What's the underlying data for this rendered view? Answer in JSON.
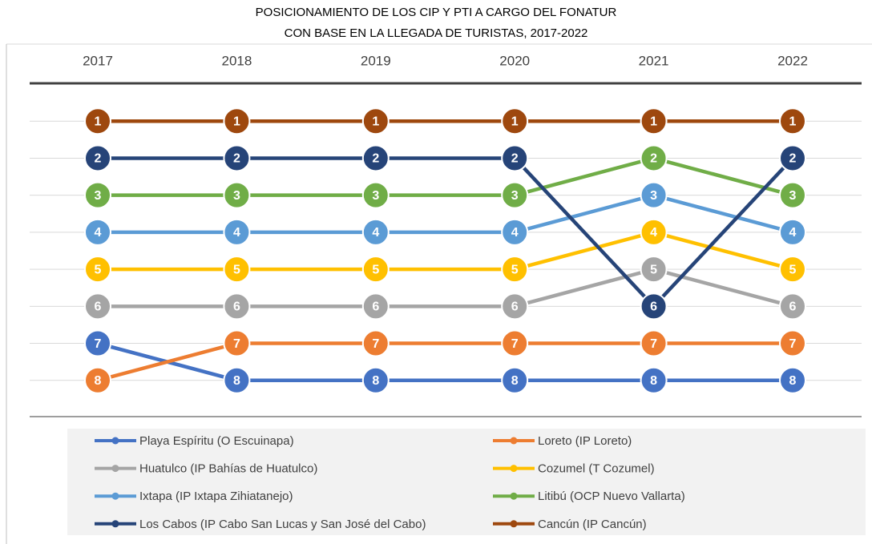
{
  "chart_data": {
    "type": "line",
    "title": "POSICIONAMIENTO DE LOS CIP Y PTI A CARGO DEL FONATUR",
    "subtitle": "CON BASE EN LA LLEGADA DE TURISTAS, 2017-2022",
    "categories": [
      "2017",
      "2018",
      "2019",
      "2020",
      "2021",
      "2022"
    ],
    "ylim": [
      0,
      9
    ],
    "yticks": [
      1,
      2,
      3,
      4,
      5,
      6,
      7,
      8
    ],
    "inverted": true,
    "grid": true,
    "legend": "bottom",
    "series": [
      {
        "name": "Playa Espíritu (O Escuinapa)",
        "color": "#4472c4",
        "values": [
          7,
          8,
          8,
          8,
          8,
          8
        ]
      },
      {
        "name": "Loreto (IP Loreto)",
        "color": "#ed7d31",
        "values": [
          8,
          7,
          7,
          7,
          7,
          7
        ]
      },
      {
        "name": "Huatulco (IP Bahías de Huatulco)",
        "color": "#a5a5a5",
        "values": [
          6,
          6,
          6,
          6,
          5,
          6
        ]
      },
      {
        "name": "Cozumel (T Cozumel)",
        "color": "#ffc000",
        "values": [
          5,
          5,
          5,
          5,
          4,
          5
        ]
      },
      {
        "name": "Ixtapa (IP Ixtapa Zihiatanejo)",
        "color": "#5b9bd5",
        "values": [
          4,
          4,
          4,
          4,
          3,
          4
        ]
      },
      {
        "name": "Litibú (OCP Nuevo Vallarta)",
        "color": "#70ad47",
        "values": [
          3,
          3,
          3,
          3,
          2,
          3
        ]
      },
      {
        "name": "Los Cabos (IP Cabo San Lucas y San José del Cabo)",
        "color": "#264478",
        "values": [
          2,
          2,
          2,
          2,
          6,
          2
        ]
      },
      {
        "name": "Cancún (IP Cancún)",
        "color": "#9e480e",
        "values": [
          1,
          1,
          1,
          1,
          1,
          1
        ]
      }
    ]
  }
}
